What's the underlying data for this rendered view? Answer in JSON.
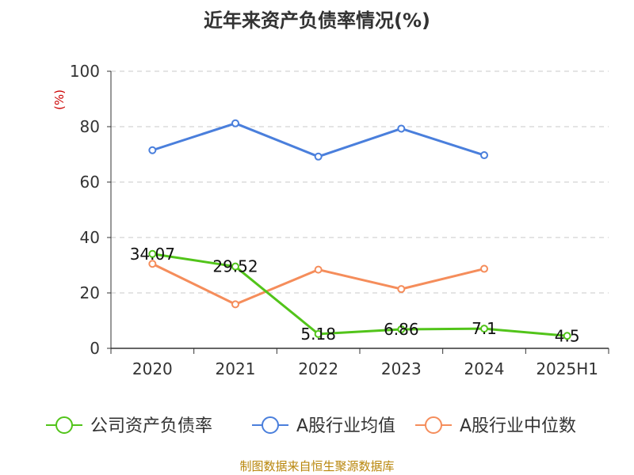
{
  "chart_data": {
    "type": "line",
    "title": "近年来资产负债率情况(%)",
    "ylabel": "(%)",
    "ylim": [
      0,
      100
    ],
    "yticks": [
      0,
      20,
      40,
      60,
      80,
      100
    ],
    "grid": true,
    "legend_position": "bottom",
    "categories": [
      "2020",
      "2021",
      "2022",
      "2023",
      "2024",
      "2025H1"
    ],
    "series": [
      {
        "name": "公司资产负债率",
        "color": "#52c41a",
        "values": [
          34.07,
          29.52,
          5.18,
          6.86,
          7.1,
          4.5
        ],
        "labels": [
          "34.07",
          "29.52",
          "5.18",
          "6.86",
          "7.1",
          "4.5"
        ]
      },
      {
        "name": "A股行业均值",
        "color": "#4a7fdc",
        "values": [
          71.5,
          81.2,
          69.2,
          79.3,
          69.7,
          null
        ],
        "labels": null
      },
      {
        "name": "A股行业中位数",
        "color": "#f58d5b",
        "values": [
          30.5,
          15.9,
          28.4,
          21.4,
          28.7,
          null
        ],
        "labels": null
      }
    ]
  },
  "footer": "制图数据来自恒生聚源数据库"
}
